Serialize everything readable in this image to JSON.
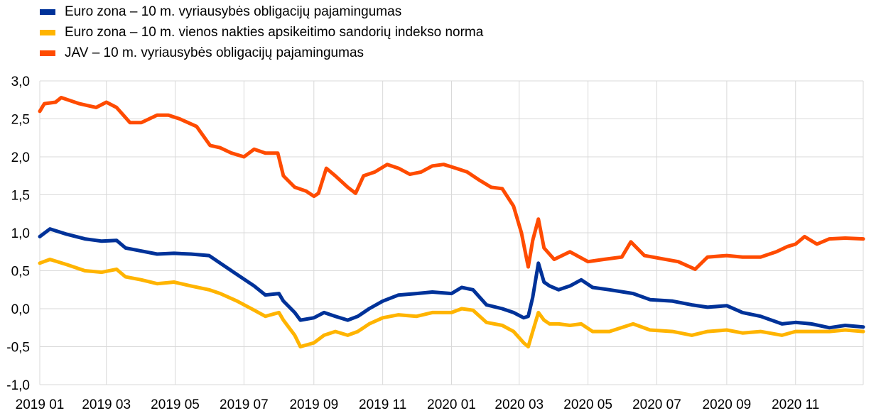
{
  "chart_data": {
    "type": "line",
    "title": "",
    "xlabel": "",
    "ylabel": "",
    "ylim": [
      -1.0,
      3.0
    ],
    "y_ticks": [
      "-1,0",
      "-0,5",
      "0,0",
      "0,5",
      "1,0",
      "1,5",
      "2,0",
      "2,5",
      "3,0"
    ],
    "x_ticks": [
      "2019 01",
      "2019 03",
      "2019 05",
      "2019 07",
      "2019 09",
      "2019 11",
      "2020 01",
      "2020 03",
      "2020 05",
      "2020 07",
      "2020 09",
      "2020 11"
    ],
    "x_tick_dates": [
      "2019-01-01",
      "2019-03-01",
      "2019-05-01",
      "2019-07-01",
      "2019-09-01",
      "2019-11-01",
      "2020-01-01",
      "2020-03-01",
      "2020-05-01",
      "2020-07-01",
      "2020-09-01",
      "2020-11-01"
    ],
    "x_range": [
      "2019-01-01",
      "2020-12-31"
    ],
    "grid": "vertical and horizontal",
    "legend_position": "top-left",
    "series": [
      {
        "name": "Euro zona – 10 m. vyriausybės obligacijų pajamingumas",
        "color": "#003299",
        "points": [
          [
            "2019-01-01",
            0.95
          ],
          [
            "2019-01-10",
            1.05
          ],
          [
            "2019-01-25",
            0.98
          ],
          [
            "2019-02-10",
            0.92
          ],
          [
            "2019-02-25",
            0.89
          ],
          [
            "2019-03-10",
            0.9
          ],
          [
            "2019-03-18",
            0.8
          ],
          [
            "2019-04-01",
            0.76
          ],
          [
            "2019-04-15",
            0.72
          ],
          [
            "2019-04-30",
            0.73
          ],
          [
            "2019-05-15",
            0.72
          ],
          [
            "2019-05-31",
            0.7
          ],
          [
            "2019-06-10",
            0.6
          ],
          [
            "2019-06-25",
            0.45
          ],
          [
            "2019-07-10",
            0.3
          ],
          [
            "2019-07-20",
            0.18
          ],
          [
            "2019-08-01",
            0.2
          ],
          [
            "2019-08-05",
            0.1
          ],
          [
            "2019-08-15",
            -0.05
          ],
          [
            "2019-08-20",
            -0.15
          ],
          [
            "2019-09-01",
            -0.12
          ],
          [
            "2019-09-10",
            -0.05
          ],
          [
            "2019-09-20",
            -0.1
          ],
          [
            "2019-10-01",
            -0.15
          ],
          [
            "2019-10-10",
            -0.1
          ],
          [
            "2019-10-20",
            0.0
          ],
          [
            "2019-11-01",
            0.1
          ],
          [
            "2019-11-15",
            0.18
          ],
          [
            "2019-12-01",
            0.2
          ],
          [
            "2019-12-15",
            0.22
          ],
          [
            "2020-01-01",
            0.2
          ],
          [
            "2020-01-10",
            0.28
          ],
          [
            "2020-01-20",
            0.25
          ],
          [
            "2020-02-01",
            0.05
          ],
          [
            "2020-02-15",
            0.0
          ],
          [
            "2020-02-25",
            -0.05
          ],
          [
            "2020-03-05",
            -0.12
          ],
          [
            "2020-03-09",
            -0.1
          ],
          [
            "2020-03-13",
            0.15
          ],
          [
            "2020-03-18",
            0.6
          ],
          [
            "2020-03-23",
            0.35
          ],
          [
            "2020-03-28",
            0.3
          ],
          [
            "2020-04-05",
            0.25
          ],
          [
            "2020-04-15",
            0.3
          ],
          [
            "2020-04-25",
            0.38
          ],
          [
            "2020-05-05",
            0.28
          ],
          [
            "2020-05-20",
            0.25
          ],
          [
            "2020-06-10",
            0.2
          ],
          [
            "2020-06-25",
            0.12
          ],
          [
            "2020-07-15",
            0.1
          ],
          [
            "2020-08-01",
            0.05
          ],
          [
            "2020-08-15",
            0.02
          ],
          [
            "2020-09-01",
            0.04
          ],
          [
            "2020-09-15",
            -0.05
          ],
          [
            "2020-10-01",
            -0.1
          ],
          [
            "2020-10-20",
            -0.2
          ],
          [
            "2020-11-01",
            -0.18
          ],
          [
            "2020-11-15",
            -0.2
          ],
          [
            "2020-12-01",
            -0.25
          ],
          [
            "2020-12-15",
            -0.22
          ],
          [
            "2020-12-31",
            -0.24
          ]
        ]
      },
      {
        "name": "Euro zona – 10 m. vienos nakties apsikeitimo sandorių indekso norma",
        "color": "#ffb400",
        "points": [
          [
            "2019-01-01",
            0.6
          ],
          [
            "2019-01-10",
            0.65
          ],
          [
            "2019-01-25",
            0.58
          ],
          [
            "2019-02-10",
            0.5
          ],
          [
            "2019-02-25",
            0.48
          ],
          [
            "2019-03-10",
            0.52
          ],
          [
            "2019-03-18",
            0.42
          ],
          [
            "2019-04-01",
            0.38
          ],
          [
            "2019-04-15",
            0.33
          ],
          [
            "2019-04-30",
            0.35
          ],
          [
            "2019-05-15",
            0.3
          ],
          [
            "2019-05-31",
            0.25
          ],
          [
            "2019-06-10",
            0.2
          ],
          [
            "2019-06-25",
            0.1
          ],
          [
            "2019-07-10",
            -0.02
          ],
          [
            "2019-07-20",
            -0.1
          ],
          [
            "2019-08-01",
            -0.05
          ],
          [
            "2019-08-05",
            -0.15
          ],
          [
            "2019-08-15",
            -0.35
          ],
          [
            "2019-08-20",
            -0.5
          ],
          [
            "2019-09-01",
            -0.45
          ],
          [
            "2019-09-10",
            -0.35
          ],
          [
            "2019-09-20",
            -0.3
          ],
          [
            "2019-10-01",
            -0.35
          ],
          [
            "2019-10-10",
            -0.3
          ],
          [
            "2019-10-20",
            -0.2
          ],
          [
            "2019-11-01",
            -0.12
          ],
          [
            "2019-11-15",
            -0.08
          ],
          [
            "2019-12-01",
            -0.1
          ],
          [
            "2019-12-15",
            -0.05
          ],
          [
            "2020-01-01",
            -0.05
          ],
          [
            "2020-01-10",
            0.0
          ],
          [
            "2020-01-20",
            -0.02
          ],
          [
            "2020-02-01",
            -0.18
          ],
          [
            "2020-02-15",
            -0.22
          ],
          [
            "2020-02-25",
            -0.3
          ],
          [
            "2020-03-05",
            -0.45
          ],
          [
            "2020-03-09",
            -0.5
          ],
          [
            "2020-03-13",
            -0.3
          ],
          [
            "2020-03-18",
            -0.05
          ],
          [
            "2020-03-23",
            -0.15
          ],
          [
            "2020-03-28",
            -0.2
          ],
          [
            "2020-04-05",
            -0.2
          ],
          [
            "2020-04-15",
            -0.22
          ],
          [
            "2020-04-25",
            -0.2
          ],
          [
            "2020-05-05",
            -0.3
          ],
          [
            "2020-05-20",
            -0.3
          ],
          [
            "2020-06-10",
            -0.2
          ],
          [
            "2020-06-25",
            -0.28
          ],
          [
            "2020-07-15",
            -0.3
          ],
          [
            "2020-08-01",
            -0.35
          ],
          [
            "2020-08-15",
            -0.3
          ],
          [
            "2020-09-01",
            -0.28
          ],
          [
            "2020-09-15",
            -0.32
          ],
          [
            "2020-10-01",
            -0.3
          ],
          [
            "2020-10-20",
            -0.35
          ],
          [
            "2020-11-01",
            -0.3
          ],
          [
            "2020-11-15",
            -0.3
          ],
          [
            "2020-12-01",
            -0.3
          ],
          [
            "2020-12-15",
            -0.28
          ],
          [
            "2020-12-31",
            -0.3
          ]
        ]
      },
      {
        "name": "JAV – 10 m. vyriausybės obligacijų pajamingumas",
        "color": "#ff4b00",
        "points": [
          [
            "2019-01-01",
            2.6
          ],
          [
            "2019-01-05",
            2.7
          ],
          [
            "2019-01-15",
            2.72
          ],
          [
            "2019-01-20",
            2.78
          ],
          [
            "2019-02-05",
            2.7
          ],
          [
            "2019-02-20",
            2.65
          ],
          [
            "2019-03-01",
            2.72
          ],
          [
            "2019-03-10",
            2.65
          ],
          [
            "2019-03-22",
            2.45
          ],
          [
            "2019-04-01",
            2.45
          ],
          [
            "2019-04-15",
            2.55
          ],
          [
            "2019-04-25",
            2.55
          ],
          [
            "2019-05-05",
            2.5
          ],
          [
            "2019-05-20",
            2.4
          ],
          [
            "2019-06-01",
            2.15
          ],
          [
            "2019-06-10",
            2.12
          ],
          [
            "2019-06-20",
            2.05
          ],
          [
            "2019-07-01",
            2.0
          ],
          [
            "2019-07-10",
            2.1
          ],
          [
            "2019-07-20",
            2.05
          ],
          [
            "2019-07-31",
            2.05
          ],
          [
            "2019-08-05",
            1.75
          ],
          [
            "2019-08-15",
            1.6
          ],
          [
            "2019-08-25",
            1.55
          ],
          [
            "2019-09-01",
            1.48
          ],
          [
            "2019-09-05",
            1.52
          ],
          [
            "2019-09-12",
            1.85
          ],
          [
            "2019-09-20",
            1.75
          ],
          [
            "2019-10-01",
            1.6
          ],
          [
            "2019-10-08",
            1.52
          ],
          [
            "2019-10-15",
            1.75
          ],
          [
            "2019-10-25",
            1.8
          ],
          [
            "2019-11-05",
            1.9
          ],
          [
            "2019-11-15",
            1.85
          ],
          [
            "2019-11-25",
            1.77
          ],
          [
            "2019-12-05",
            1.8
          ],
          [
            "2019-12-15",
            1.88
          ],
          [
            "2019-12-25",
            1.9
          ],
          [
            "2020-01-05",
            1.85
          ],
          [
            "2020-01-15",
            1.8
          ],
          [
            "2020-01-25",
            1.7
          ],
          [
            "2020-02-05",
            1.6
          ],
          [
            "2020-02-15",
            1.58
          ],
          [
            "2020-02-25",
            1.35
          ],
          [
            "2020-03-03",
            1.0
          ],
          [
            "2020-03-09",
            0.55
          ],
          [
            "2020-03-13",
            0.9
          ],
          [
            "2020-03-18",
            1.18
          ],
          [
            "2020-03-23",
            0.8
          ],
          [
            "2020-04-01",
            0.65
          ],
          [
            "2020-04-15",
            0.75
          ],
          [
            "2020-05-01",
            0.62
          ],
          [
            "2020-05-15",
            0.65
          ],
          [
            "2020-05-31",
            0.68
          ],
          [
            "2020-06-08",
            0.88
          ],
          [
            "2020-06-20",
            0.7
          ],
          [
            "2020-07-05",
            0.66
          ],
          [
            "2020-07-20",
            0.62
          ],
          [
            "2020-08-04",
            0.52
          ],
          [
            "2020-08-15",
            0.68
          ],
          [
            "2020-09-01",
            0.7
          ],
          [
            "2020-09-15",
            0.68
          ],
          [
            "2020-10-01",
            0.68
          ],
          [
            "2020-10-15",
            0.75
          ],
          [
            "2020-10-25",
            0.82
          ],
          [
            "2020-11-01",
            0.85
          ],
          [
            "2020-11-09",
            0.95
          ],
          [
            "2020-11-20",
            0.85
          ],
          [
            "2020-12-01",
            0.92
          ],
          [
            "2020-12-15",
            0.93
          ],
          [
            "2020-12-31",
            0.92
          ]
        ]
      }
    ]
  }
}
